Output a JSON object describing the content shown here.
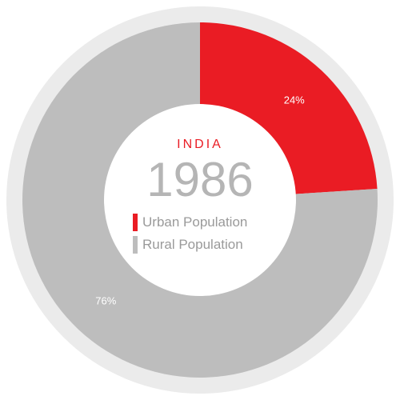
{
  "header": {
    "country": "INDIA",
    "year": "1986"
  },
  "colors": {
    "urban": "#ea1c24",
    "rural": "#bdbdbd",
    "outer_ring": "#ebebeb",
    "inner_disc": "#ffffff"
  },
  "chart_data": {
    "type": "pie",
    "style": "donut",
    "title": "",
    "categories": [
      "Urban Population",
      "Rural Population"
    ],
    "values": [
      24,
      76
    ],
    "value_labels": [
      "24%",
      "76%"
    ],
    "legend_position": "center",
    "grid": false
  }
}
